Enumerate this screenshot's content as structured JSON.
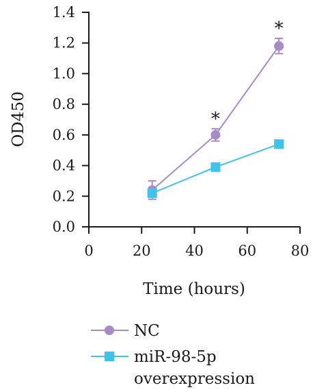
{
  "chart_data": {
    "type": "line",
    "xlabel": "Time (hours)",
    "ylabel": "OD450",
    "xlim": [
      0,
      80
    ],
    "ylim": [
      0,
      1.4
    ],
    "xticks": [
      "0",
      "20",
      "40",
      "60",
      "80"
    ],
    "yticks": [
      "0.0",
      "0.2",
      "0.4",
      "0.6",
      "0.8",
      "1.0",
      "1.2",
      "1.4"
    ],
    "grid": false,
    "legend_position": "bottom-left",
    "series": [
      {
        "name": "NC",
        "marker": "circle",
        "color": "#a98ac9",
        "x": [
          24,
          48,
          72
        ],
        "y": [
          0.24,
          0.6,
          1.18
        ],
        "error": [
          0.06,
          0.04,
          0.05
        ]
      },
      {
        "name": "miR-98-5p overexpression",
        "legend_lines": [
          "miR-98-5p",
          "overexpression"
        ],
        "marker": "square",
        "color": "#3ec3ea",
        "x": [
          24,
          48,
          72
        ],
        "y": [
          0.22,
          0.39,
          0.54
        ],
        "error": [
          0,
          0,
          0
        ]
      }
    ],
    "annotations": [
      {
        "text": "*",
        "x": 48
      },
      {
        "text": "*",
        "x": 72
      }
    ]
  }
}
